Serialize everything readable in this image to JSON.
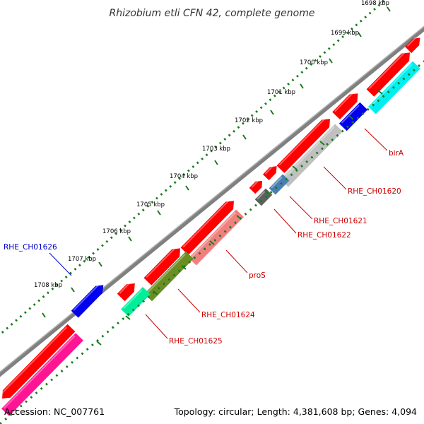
{
  "title": "Rhizobium etli CFN 42, complete genome",
  "footer": {
    "accession": "Accession: NC_007761",
    "summary": "Topology: circular; Length: 4,381,608 bp; Genes: 4,094"
  },
  "colors": {
    "backbone": "#808080",
    "tick_dot": "#1a7a1a",
    "label_red": "#cc0000",
    "label_blue": "#0000cc",
    "cds_red": "#ff0000"
  },
  "ticks": [
    "1698 kbp",
    "1699 kbp",
    "1700 kbp",
    "1701 kbp",
    "1702 kbp",
    "1703 kbp",
    "1704 kbp",
    "1705 kbp",
    "1706 kbp",
    "1707 kbp",
    "1708 kbp"
  ],
  "labels": [
    {
      "text": "birA",
      "color": "#cc0000"
    },
    {
      "text": "RHE_CH01620",
      "color": "#cc0000"
    },
    {
      "text": "RHE_CH01621",
      "color": "#cc0000"
    },
    {
      "text": "RHE_CH01622",
      "color": "#cc0000"
    },
    {
      "text": "proS",
      "color": "#cc0000"
    },
    {
      "text": "RHE_CH01624",
      "color": "#cc0000"
    },
    {
      "text": "RHE_CH01625",
      "color": "#cc0000"
    },
    {
      "text": "RHE_CH01626",
      "color": "#0000cc"
    }
  ],
  "features": [
    {
      "name": "cds-red",
      "color": "#ff0000"
    },
    {
      "name": "birA",
      "color": "#0000ee"
    },
    {
      "name": "RHE_CH01620",
      "color": "#c0c0c0"
    },
    {
      "name": "RHE_CH01621",
      "color": "#4a7fb5"
    },
    {
      "name": "RHE_CH01622",
      "color": "#606060"
    },
    {
      "name": "proS",
      "color": "#f08080"
    },
    {
      "name": "RHE_CH01624",
      "color": "#6b8e23"
    },
    {
      "name": "RHE_CH01625",
      "color": "#00ee99"
    },
    {
      "name": "RHE_CH01626",
      "color": "#0000ee"
    },
    {
      "name": "cyan-gene",
      "color": "#00eeee"
    },
    {
      "name": "pink-gene",
      "color": "#ff1493"
    }
  ]
}
